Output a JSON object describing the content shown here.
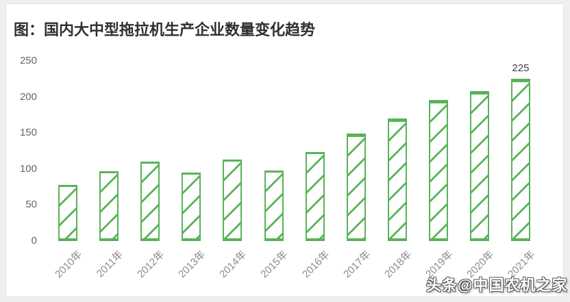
{
  "header": {
    "title": "图：国内大中型拖拉机生产企业数量变化趋势"
  },
  "watermark": {
    "text": "头条@中国农机之家"
  },
  "chart_data": {
    "type": "bar",
    "title": "图：国内大中型拖拉机生产企业数量变化趋势",
    "categories": [
      "2010年",
      "2011年",
      "2012年",
      "2013年",
      "2014年",
      "2015年",
      "2016年",
      "2017年",
      "2018年",
      "2019年",
      "2020年",
      "2021年"
    ],
    "values": [
      78,
      97,
      110,
      95,
      113,
      98,
      124,
      149,
      170,
      196,
      208,
      225
    ],
    "yticks": [
      0,
      50,
      100,
      150,
      200,
      250
    ],
    "ylim": [
      0,
      250
    ],
    "xlabel": "",
    "ylabel": "",
    "annotations": [
      {
        "category_index": 11,
        "text": "225"
      }
    ],
    "bar_color": "#58b358",
    "bar_fill": "#ffffff",
    "hatch": "diagonal-forward",
    "grid": false,
    "legend": null,
    "axis_label_color": "#8a8a8a",
    "ytick_color": "#666666"
  }
}
